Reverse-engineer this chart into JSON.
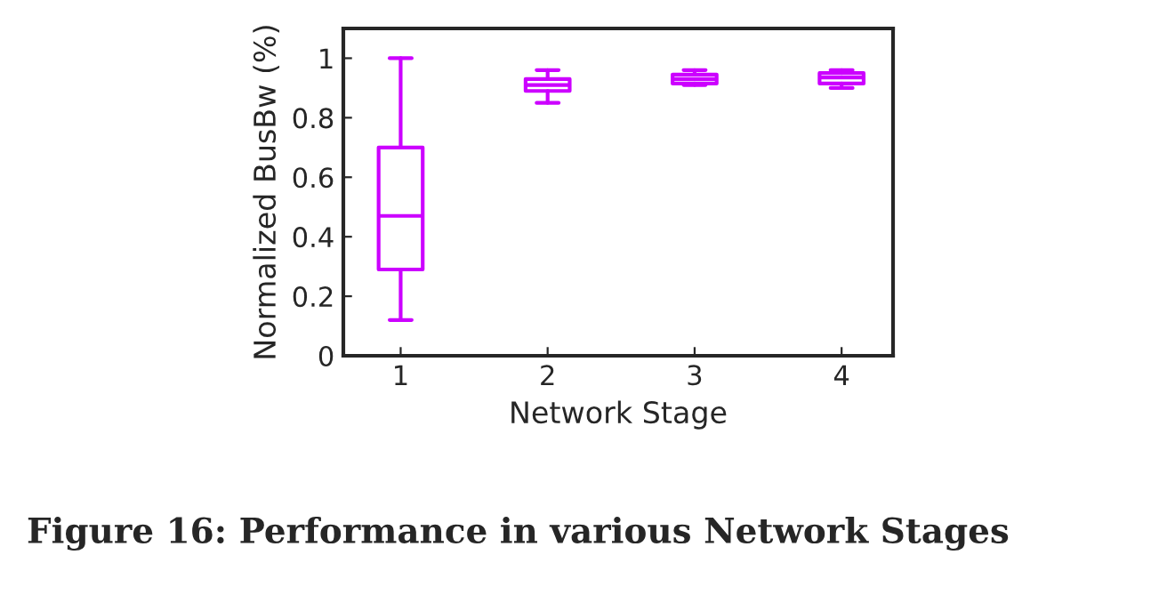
{
  "chart_data": {
    "type": "box",
    "xlabel": "Network Stage",
    "ylabel": "Normalized BusBw (%)",
    "categories": [
      "1",
      "2",
      "3",
      "4"
    ],
    "color": "#cc00ff",
    "boxes": [
      {
        "low": 0.12,
        "q1": 0.29,
        "median": 0.47,
        "q3": 0.7,
        "high": 1.0
      },
      {
        "low": 0.85,
        "q1": 0.89,
        "median": 0.91,
        "q3": 0.93,
        "high": 0.96
      },
      {
        "low": 0.91,
        "q1": 0.915,
        "median": 0.93,
        "q3": 0.945,
        "high": 0.96
      },
      {
        "low": 0.9,
        "q1": 0.915,
        "median": 0.935,
        "q3": 0.95,
        "high": 0.96
      }
    ],
    "ylim": [
      0,
      1.1
    ],
    "yticks": [
      0,
      0.2,
      0.4,
      0.6,
      0.8,
      1
    ],
    "grid": false,
    "annotations": [
      "Figure 16: Performance in various Network Stages"
    ]
  }
}
